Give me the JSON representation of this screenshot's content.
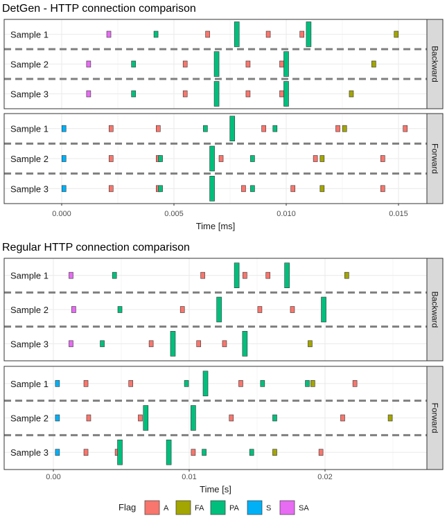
{
  "legend": {
    "title": "Flag",
    "items": [
      {
        "key": "A",
        "label": "A",
        "color": "#F8766D"
      },
      {
        "key": "FA",
        "label": "FA",
        "color": "#A3A500"
      },
      {
        "key": "PA",
        "label": "PA",
        "color": "#00BF7D"
      },
      {
        "key": "S",
        "label": "S",
        "color": "#00B0F6"
      },
      {
        "key": "SA",
        "label": "SA",
        "color": "#E76BF3"
      }
    ]
  },
  "chart_data": [
    {
      "type": "timeline",
      "title": "DetGen - HTTP connection comparison",
      "xlabel": "Time [ms]",
      "xlim": [
        -0.0009,
        0.0164
      ],
      "xticks": [
        0.0,
        0.005,
        0.01,
        0.015
      ],
      "xtick_labels": [
        "0.000",
        "0.005",
        "0.010",
        "0.015"
      ],
      "grid": true,
      "facets": [
        {
          "strip": "Backward",
          "rows": [
            {
              "label": "Sample 1",
              "events": [
                {
                  "x": 0.0021,
                  "flag": "SA"
                },
                {
                  "x": 0.0042,
                  "flag": "PA"
                },
                {
                  "x": 0.0065,
                  "flag": "A"
                },
                {
                  "x": 0.0078,
                  "flag": "PA",
                  "size": 2
                },
                {
                  "x": 0.0092,
                  "flag": "A"
                },
                {
                  "x": 0.0107,
                  "flag": "A"
                },
                {
                  "x": 0.011,
                  "flag": "PA",
                  "size": 2
                },
                {
                  "x": 0.0149,
                  "flag": "FA"
                }
              ]
            },
            {
              "label": "Sample 2",
              "events": [
                {
                  "x": 0.0012,
                  "flag": "SA"
                },
                {
                  "x": 0.0032,
                  "flag": "PA"
                },
                {
                  "x": 0.0055,
                  "flag": "A"
                },
                {
                  "x": 0.0069,
                  "flag": "PA",
                  "size": 2
                },
                {
                  "x": 0.0083,
                  "flag": "A"
                },
                {
                  "x": 0.0098,
                  "flag": "A"
                },
                {
                  "x": 0.01,
                  "flag": "PA",
                  "size": 2
                },
                {
                  "x": 0.0139,
                  "flag": "FA"
                }
              ]
            },
            {
              "label": "Sample 3",
              "events": [
                {
                  "x": 0.0012,
                  "flag": "SA"
                },
                {
                  "x": 0.0032,
                  "flag": "PA"
                },
                {
                  "x": 0.0055,
                  "flag": "A"
                },
                {
                  "x": 0.0069,
                  "flag": "PA",
                  "size": 2
                },
                {
                  "x": 0.0083,
                  "flag": "A"
                },
                {
                  "x": 0.0098,
                  "flag": "A"
                },
                {
                  "x": 0.01,
                  "flag": "PA",
                  "size": 2
                },
                {
                  "x": 0.0129,
                  "flag": "FA"
                }
              ]
            }
          ]
        },
        {
          "strip": "Forward",
          "rows": [
            {
              "label": "Sample 1",
              "events": [
                {
                  "x": 0.0001,
                  "flag": "S"
                },
                {
                  "x": 0.0022,
                  "flag": "A"
                },
                {
                  "x": 0.0043,
                  "flag": "A"
                },
                {
                  "x": 0.0064,
                  "flag": "PA"
                },
                {
                  "x": 0.0076,
                  "flag": "PA",
                  "size": 2
                },
                {
                  "x": 0.009,
                  "flag": "A"
                },
                {
                  "x": 0.0095,
                  "flag": "PA"
                },
                {
                  "x": 0.0123,
                  "flag": "A"
                },
                {
                  "x": 0.0126,
                  "flag": "FA"
                },
                {
                  "x": 0.0153,
                  "flag": "A"
                }
              ]
            },
            {
              "label": "Sample 2",
              "events": [
                {
                  "x": 0.0001,
                  "flag": "S"
                },
                {
                  "x": 0.0022,
                  "flag": "A"
                },
                {
                  "x": 0.0043,
                  "flag": "A"
                },
                {
                  "x": 0.0044,
                  "flag": "PA"
                },
                {
                  "x": 0.0067,
                  "flag": "PA",
                  "size": 2
                },
                {
                  "x": 0.0071,
                  "flag": "A"
                },
                {
                  "x": 0.0085,
                  "flag": "PA"
                },
                {
                  "x": 0.0113,
                  "flag": "A"
                },
                {
                  "x": 0.0116,
                  "flag": "FA"
                },
                {
                  "x": 0.0143,
                  "flag": "A"
                }
              ]
            },
            {
              "label": "Sample 3",
              "events": [
                {
                  "x": 0.0001,
                  "flag": "S"
                },
                {
                  "x": 0.0022,
                  "flag": "A"
                },
                {
                  "x": 0.0043,
                  "flag": "A"
                },
                {
                  "x": 0.0044,
                  "flag": "PA"
                },
                {
                  "x": 0.0067,
                  "flag": "PA",
                  "size": 2
                },
                {
                  "x": 0.0081,
                  "flag": "A"
                },
                {
                  "x": 0.0085,
                  "flag": "PA"
                },
                {
                  "x": 0.0103,
                  "flag": "A"
                },
                {
                  "x": 0.0116,
                  "flag": "FA"
                },
                {
                  "x": 0.0143,
                  "flag": "A"
                }
              ]
            }
          ]
        }
      ]
    },
    {
      "type": "timeline",
      "title": "Regular HTTP connection comparison",
      "xlabel": "Time [s]",
      "xlim": [
        -0.002,
        0.0273
      ],
      "xticks": [
        0.0,
        0.01,
        0.02
      ],
      "xtick_labels": [
        "0.00",
        "0.01",
        "0.02"
      ],
      "grid": true,
      "facets": [
        {
          "strip": "Backward",
          "rows": [
            {
              "label": "Sample 1",
              "events": [
                {
                  "x": 0.0013,
                  "flag": "SA"
                },
                {
                  "x": 0.0045,
                  "flag": "PA"
                },
                {
                  "x": 0.011,
                  "flag": "A"
                },
                {
                  "x": 0.0135,
                  "flag": "PA",
                  "size": 2
                },
                {
                  "x": 0.0141,
                  "flag": "A"
                },
                {
                  "x": 0.0158,
                  "flag": "A"
                },
                {
                  "x": 0.0172,
                  "flag": "PA",
                  "size": 2
                },
                {
                  "x": 0.0216,
                  "flag": "FA"
                }
              ]
            },
            {
              "label": "Sample 2",
              "events": [
                {
                  "x": 0.0015,
                  "flag": "SA"
                },
                {
                  "x": 0.0049,
                  "flag": "PA"
                },
                {
                  "x": 0.0095,
                  "flag": "A"
                },
                {
                  "x": 0.0122,
                  "flag": "PA",
                  "size": 2
                },
                {
                  "x": 0.0152,
                  "flag": "A"
                },
                {
                  "x": 0.0176,
                  "flag": "A"
                },
                {
                  "x": 0.0199,
                  "flag": "PA",
                  "size": 2
                }
              ]
            },
            {
              "label": "Sample 3",
              "events": [
                {
                  "x": 0.0013,
                  "flag": "SA"
                },
                {
                  "x": 0.0036,
                  "flag": "PA"
                },
                {
                  "x": 0.0072,
                  "flag": "A"
                },
                {
                  "x": 0.0088,
                  "flag": "PA",
                  "size": 2
                },
                {
                  "x": 0.0107,
                  "flag": "A"
                },
                {
                  "x": 0.0126,
                  "flag": "A"
                },
                {
                  "x": 0.0141,
                  "flag": "PA",
                  "size": 2
                },
                {
                  "x": 0.0189,
                  "flag": "FA"
                }
              ]
            }
          ]
        },
        {
          "strip": "Forward",
          "rows": [
            {
              "label": "Sample 1",
              "events": [
                {
                  "x": 0.0003,
                  "flag": "S"
                },
                {
                  "x": 0.0024,
                  "flag": "A"
                },
                {
                  "x": 0.0057,
                  "flag": "A"
                },
                {
                  "x": 0.0098,
                  "flag": "PA"
                },
                {
                  "x": 0.0112,
                  "flag": "PA",
                  "size": 2
                },
                {
                  "x": 0.0138,
                  "flag": "A"
                },
                {
                  "x": 0.0154,
                  "flag": "PA"
                },
                {
                  "x": 0.0187,
                  "flag": "PA"
                },
                {
                  "x": 0.0191,
                  "flag": "FA"
                },
                {
                  "x": 0.0222,
                  "flag": "A"
                }
              ]
            },
            {
              "label": "Sample 2",
              "events": [
                {
                  "x": 0.0003,
                  "flag": "S"
                },
                {
                  "x": 0.0026,
                  "flag": "A"
                },
                {
                  "x": 0.0064,
                  "flag": "A"
                },
                {
                  "x": 0.0068,
                  "flag": "PA",
                  "size": 2
                },
                {
                  "x": 0.0103,
                  "flag": "PA",
                  "size": 2
                },
                {
                  "x": 0.0131,
                  "flag": "A"
                },
                {
                  "x": 0.0163,
                  "flag": "PA"
                },
                {
                  "x": 0.0213,
                  "flag": "A"
                },
                {
                  "x": 0.0248,
                  "flag": "FA"
                }
              ]
            },
            {
              "label": "Sample 3",
              "events": [
                {
                  "x": 0.0003,
                  "flag": "S"
                },
                {
                  "x": 0.0024,
                  "flag": "A"
                },
                {
                  "x": 0.0047,
                  "flag": "A"
                },
                {
                  "x": 0.0049,
                  "flag": "PA",
                  "size": 2
                },
                {
                  "x": 0.0085,
                  "flag": "PA",
                  "size": 2
                },
                {
                  "x": 0.0103,
                  "flag": "A"
                },
                {
                  "x": 0.0111,
                  "flag": "PA"
                },
                {
                  "x": 0.0146,
                  "flag": "PA"
                },
                {
                  "x": 0.0163,
                  "flag": "FA"
                },
                {
                  "x": 0.0197,
                  "flag": "A"
                }
              ]
            }
          ]
        }
      ]
    }
  ]
}
